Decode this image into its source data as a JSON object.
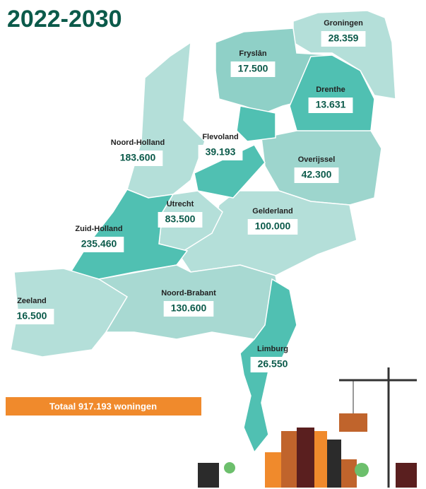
{
  "title": "2022-2030",
  "provinces": [
    {
      "name": "Groningen",
      "value": "28.359"
    },
    {
      "name": "Fryslân",
      "value": "17.500"
    },
    {
      "name": "Drenthe",
      "value": "13.631"
    },
    {
      "name": "Flevoland",
      "value": "39.193"
    },
    {
      "name": "Noord-Holland",
      "value": "183.600"
    },
    {
      "name": "Overijssel",
      "value": "42.300"
    },
    {
      "name": "Utrecht",
      "value": "83.500"
    },
    {
      "name": "Gelderland",
      "value": "100.000"
    },
    {
      "name": "Zuid-Holland",
      "value": "235.460"
    },
    {
      "name": "Noord-Brabant",
      "value": "130.600"
    },
    {
      "name": "Zeeland",
      "value": "16.500"
    },
    {
      "name": "Limburg",
      "value": "26.550"
    }
  ],
  "total": "Totaal 917.193 woningen"
}
